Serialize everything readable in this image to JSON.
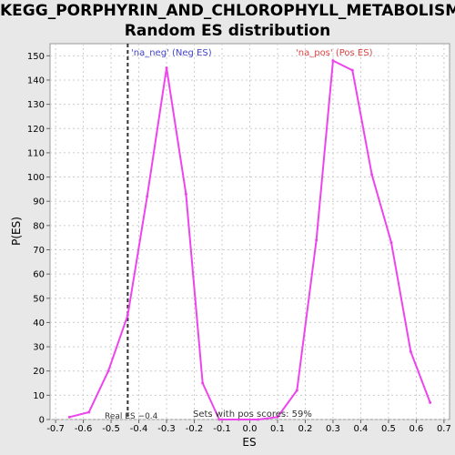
{
  "chart_data": {
    "type": "line",
    "title_lines": [
      "KEGG_PORPHYRIN_AND_CHLOROPHYLL_METABOLISM:",
      "Random ES distribution"
    ],
    "xlabel": "ES",
    "ylabel": "P(ES)",
    "xlim": [
      -0.72,
      0.72
    ],
    "ylim": [
      0,
      155
    ],
    "xticks": [
      -0.7,
      -0.6,
      -0.5,
      -0.4,
      -0.3,
      -0.2,
      -0.1,
      0.0,
      0.1,
      0.2,
      0.3,
      0.4,
      0.5,
      0.6,
      0.7
    ],
    "xtick_labels": [
      "-0.7",
      "-0.6",
      "-0.5",
      "-0.4",
      "-0.3",
      "-0.2",
      "-0.1",
      "0.0",
      "0.1",
      "0.2",
      "0.3",
      "0.4",
      "0.5",
      "0.6",
      "0.7"
    ],
    "yticks": [
      0,
      10,
      20,
      30,
      40,
      50,
      60,
      70,
      80,
      90,
      100,
      110,
      120,
      130,
      140,
      150
    ],
    "grid": true,
    "series": [
      {
        "color": "#ee44ee",
        "x": [
          -0.65,
          -0.58,
          -0.51,
          -0.44,
          -0.37,
          -0.3,
          -0.23,
          -0.17,
          -0.11,
          -0.04,
          0.03,
          0.1,
          0.17,
          0.24,
          0.3,
          0.37,
          0.44,
          0.51,
          0.58,
          0.65
        ],
        "y": [
          1,
          3,
          20,
          43,
          92,
          145,
          93,
          15,
          0,
          0,
          0,
          1,
          12,
          74,
          148,
          144,
          101,
          73,
          28,
          7
        ]
      }
    ],
    "real_es": -0.44,
    "annotations": {
      "neg_label": "'na_neg' (Neg ES)",
      "pos_label": "'na_pos' (Pos ES)",
      "real_es_label": "Real ES −0.4",
      "sets_label": "Sets with pos scores: 59%"
    },
    "colors": {
      "line": "#ee44ee",
      "neg_label": "#4444cc",
      "pos_label": "#dd4444",
      "real_es_line": "#333333",
      "grid": "#cccccc"
    }
  }
}
